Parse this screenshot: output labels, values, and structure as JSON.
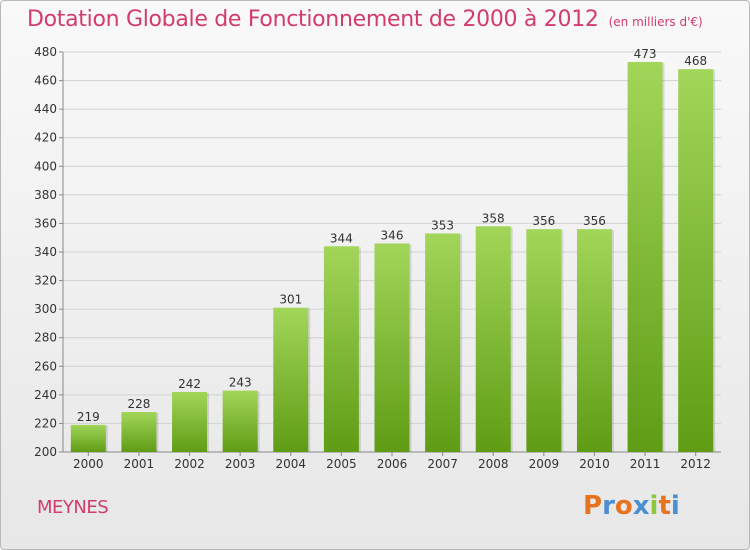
{
  "header": {
    "title": "Dotation Globale de Fonctionnement de 2000 à 2012",
    "subtitle": "(en milliers d'€)"
  },
  "footer": {
    "commune": "MEYNES",
    "brand": "Proxiti"
  },
  "colors": {
    "title": "#d23c6a",
    "bar_top": "#a2d65a",
    "bar_bottom": "#5f9c14",
    "grid": "#d2d2d2",
    "axis_text": "#333333"
  },
  "chart_data": {
    "type": "bar",
    "categories": [
      "2000",
      "2001",
      "2002",
      "2003",
      "2004",
      "2005",
      "2006",
      "2007",
      "2008",
      "2009",
      "2010",
      "2011",
      "2012"
    ],
    "values": [
      219,
      228,
      242,
      243,
      301,
      344,
      346,
      353,
      358,
      356,
      356,
      473,
      468
    ],
    "data_labels": [
      "219",
      "228",
      "242",
      "243",
      "301",
      "344",
      "346",
      "353",
      "358",
      "356",
      "356",
      "473",
      "468"
    ],
    "ylim": [
      200,
      480
    ],
    "yticks": [
      200,
      220,
      240,
      260,
      280,
      300,
      320,
      340,
      360,
      380,
      400,
      420,
      440,
      460,
      480
    ],
    "ytick_labels": [
      "200",
      "220",
      "240",
      "260",
      "280",
      "300",
      "320",
      "340",
      "360",
      "380",
      "400",
      "420",
      "440",
      "460",
      "480"
    ],
    "grid": true,
    "legend": "none"
  }
}
